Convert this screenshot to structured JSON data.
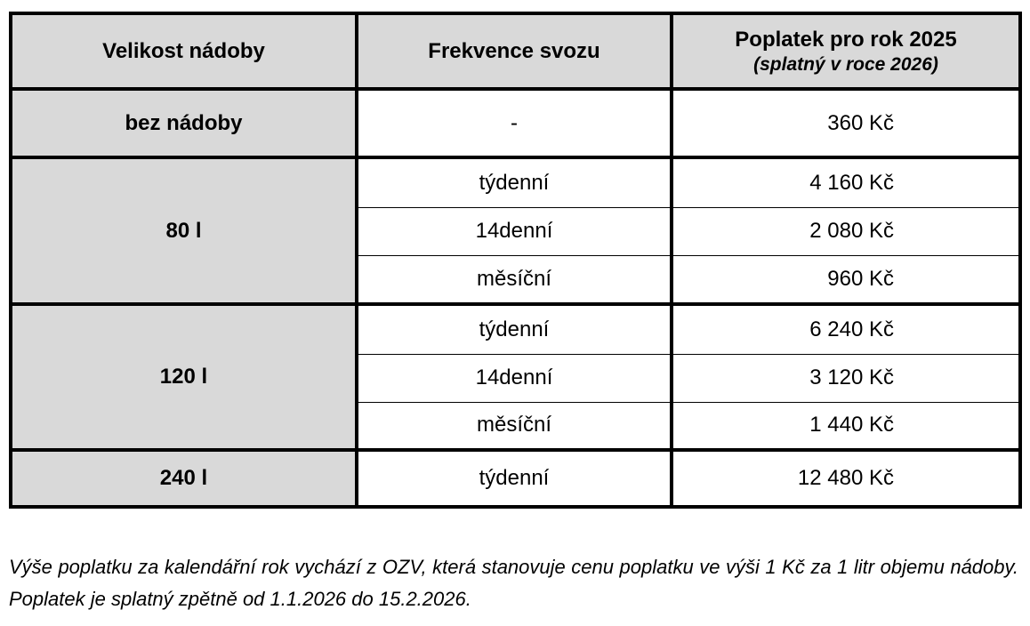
{
  "table": {
    "header": [
      "Velikost nádoby",
      "Frekvence svozu",
      {
        "title": "Poplatek pro rok 2025",
        "subtitle": "(splatný v roce 2026)"
      }
    ],
    "groups": [
      {
        "size": "bez nádoby",
        "rows": [
          {
            "frequency": "-",
            "fee": "360 Kč"
          }
        ]
      },
      {
        "size": "80 l",
        "rows": [
          {
            "frequency": "týdenní",
            "fee": "4 160 Kč"
          },
          {
            "frequency": "14denní",
            "fee": "2 080 Kč"
          },
          {
            "frequency": "měsíční",
            "fee": "960 Kč"
          }
        ]
      },
      {
        "size": "120 l",
        "rows": [
          {
            "frequency": "týdenní",
            "fee": "6 240 Kč"
          },
          {
            "frequency": "14denní",
            "fee": "3 120 Kč"
          },
          {
            "frequency": "měsíční",
            "fee": "1 440 Kč"
          }
        ]
      },
      {
        "size": "240 l",
        "rows": [
          {
            "frequency": "týdenní",
            "fee": "12 480 Kč"
          }
        ]
      }
    ]
  },
  "note": "Výše poplatku za kalendářní rok vychází z OZV, která stanovuje cenu poplatku ve výši 1 Kč za 1 litr objemu nádoby. Poplatek je splatný zpětně od 1.1.2026 do 15.2.2026."
}
